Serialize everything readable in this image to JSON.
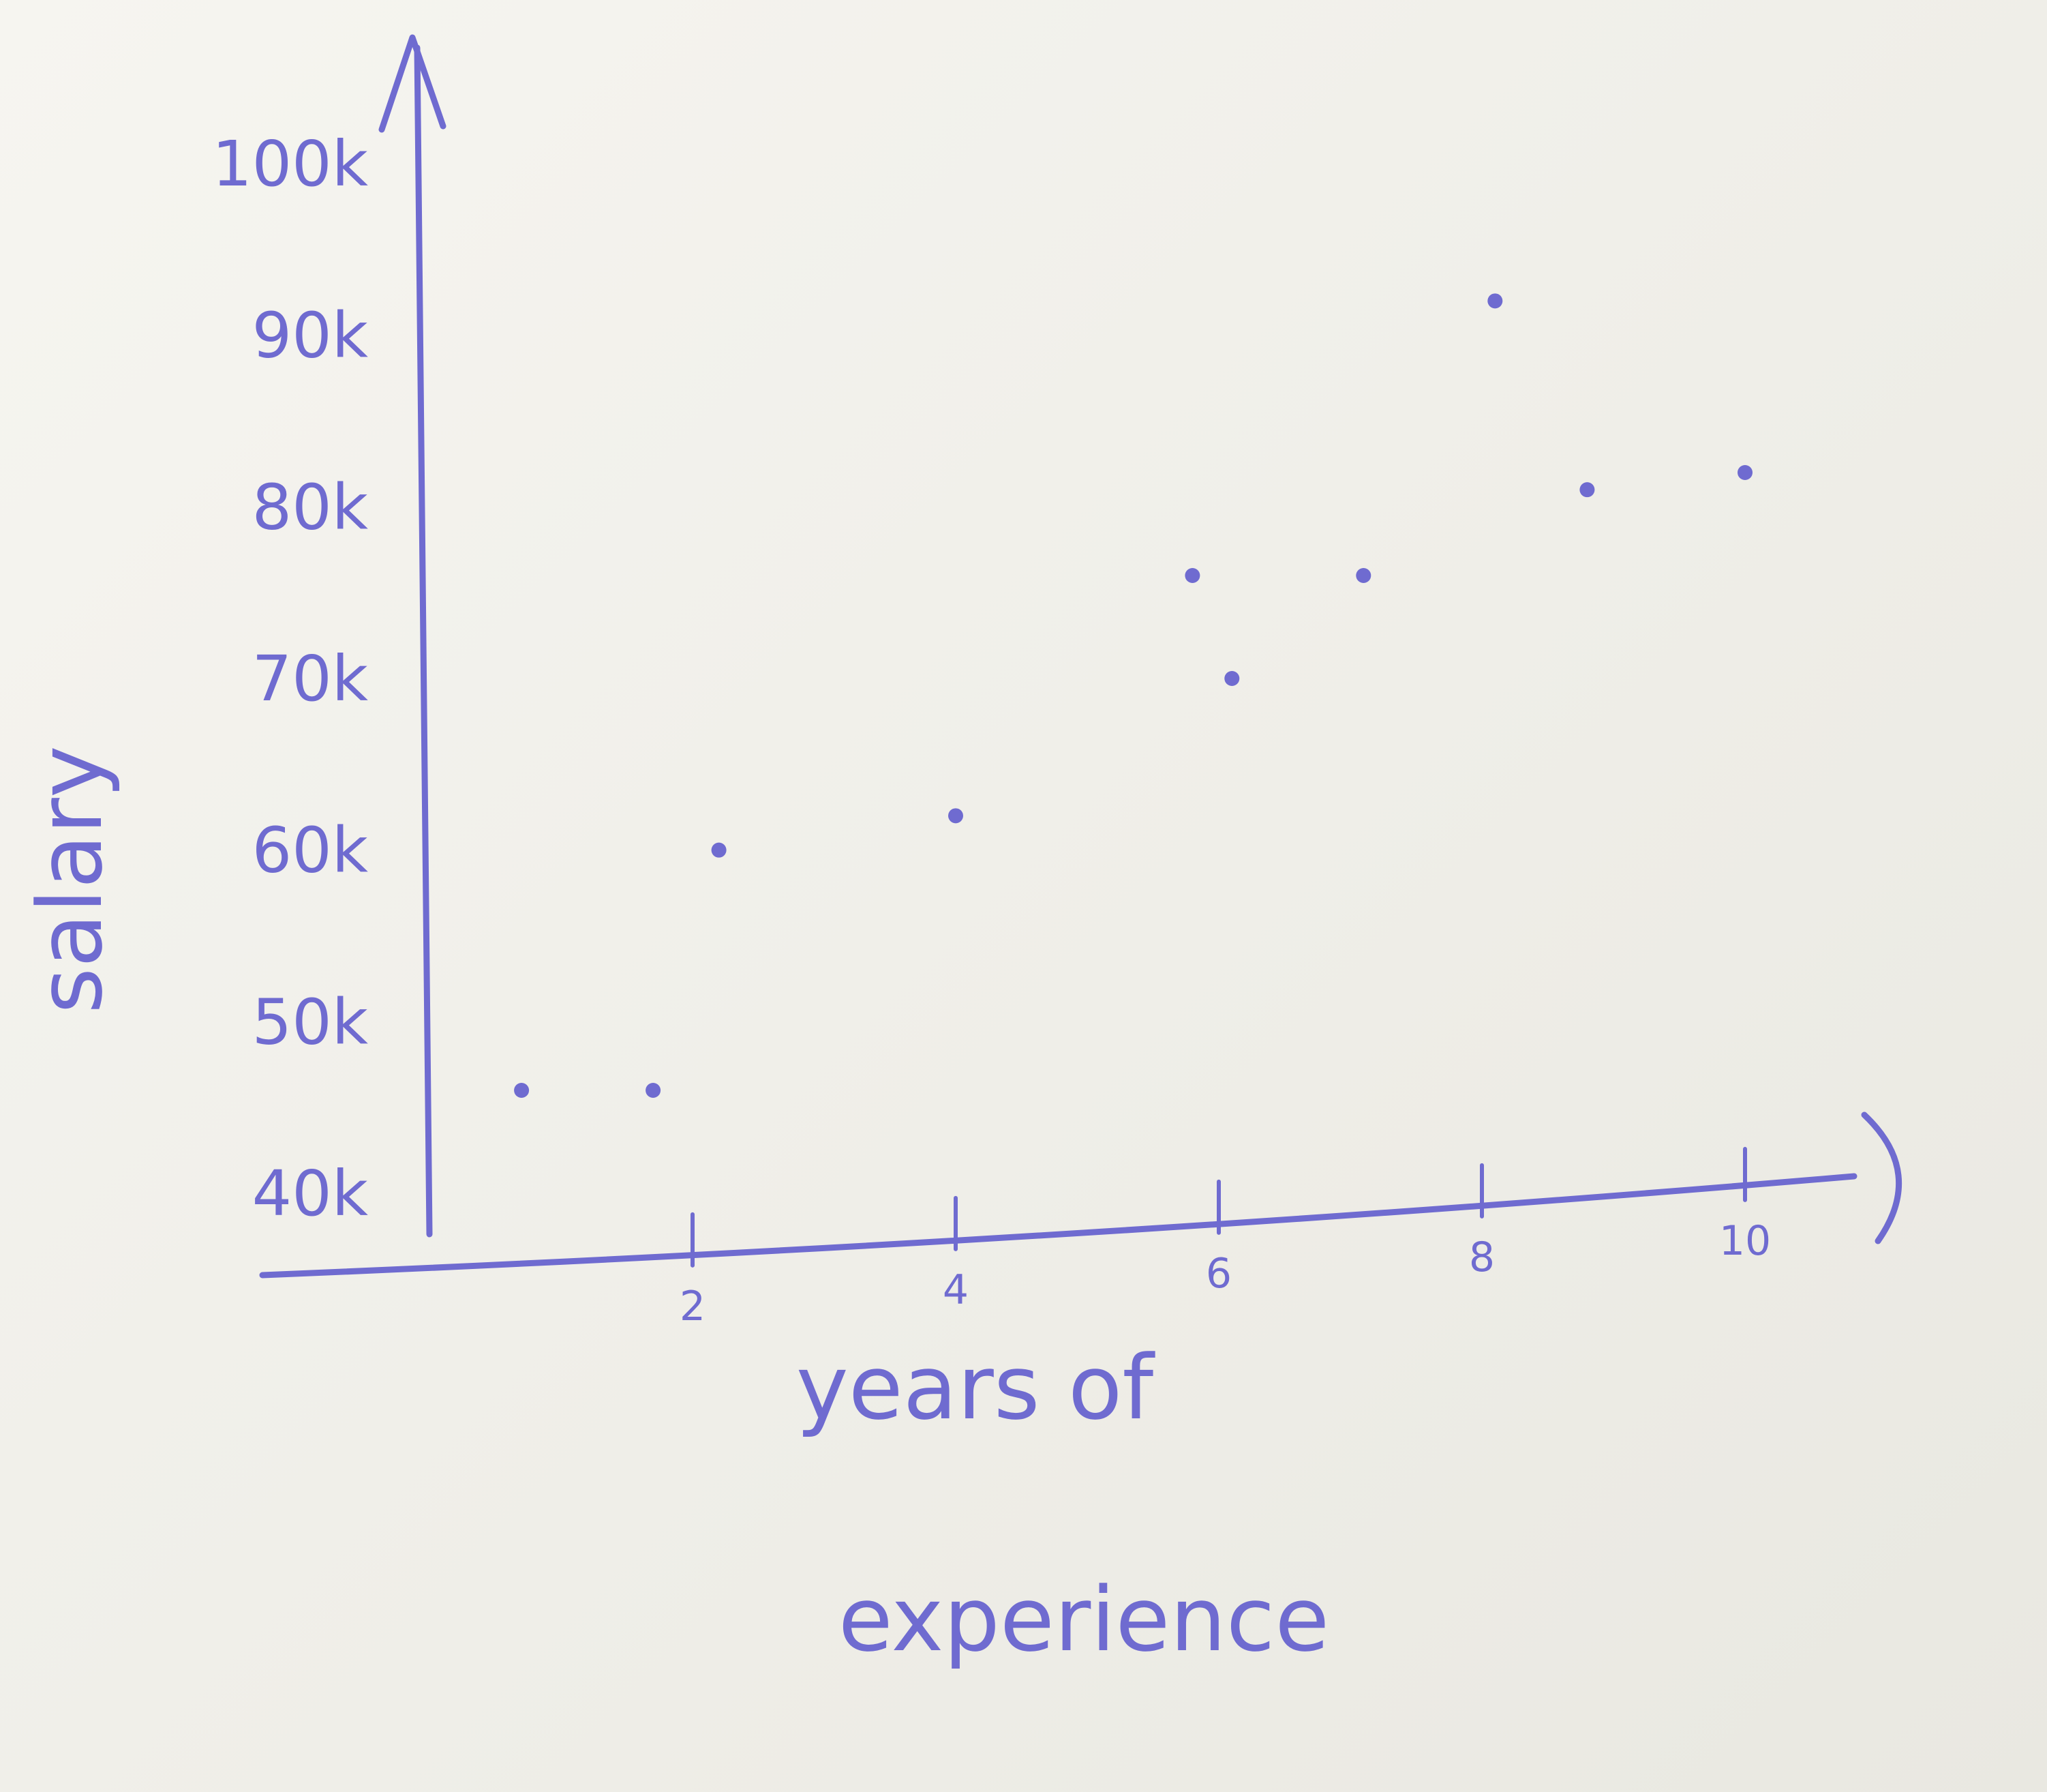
{
  "chart_data": {
    "type": "scatter",
    "title": "",
    "xlabel": "years of experience",
    "ylabel": "salary",
    "x_ticks": [
      "2",
      "4",
      "6",
      "8",
      "10"
    ],
    "y_ticks": [
      "40k",
      "50k",
      "60k",
      "70k",
      "80k",
      "90k",
      "100k"
    ],
    "xlim": [
      0,
      11
    ],
    "ylim": [
      40000,
      100000
    ],
    "grid": false,
    "series": [
      {
        "points": [
          {
            "x": 0.7,
            "y": 46000
          },
          {
            "x": 1.7,
            "y": 46000
          },
          {
            "x": 2.2,
            "y": 60000
          },
          {
            "x": 4.0,
            "y": 62000
          },
          {
            "x": 5.8,
            "y": 76000
          },
          {
            "x": 6.1,
            "y": 70000
          },
          {
            "x": 7.1,
            "y": 76000
          },
          {
            "x": 8.1,
            "y": 92000
          },
          {
            "x": 8.8,
            "y": 81000
          },
          {
            "x": 10.0,
            "y": 82000
          }
        ]
      }
    ],
    "colors": {
      "ink": "#6f6bd0",
      "paper": "#f3f2ec"
    }
  }
}
